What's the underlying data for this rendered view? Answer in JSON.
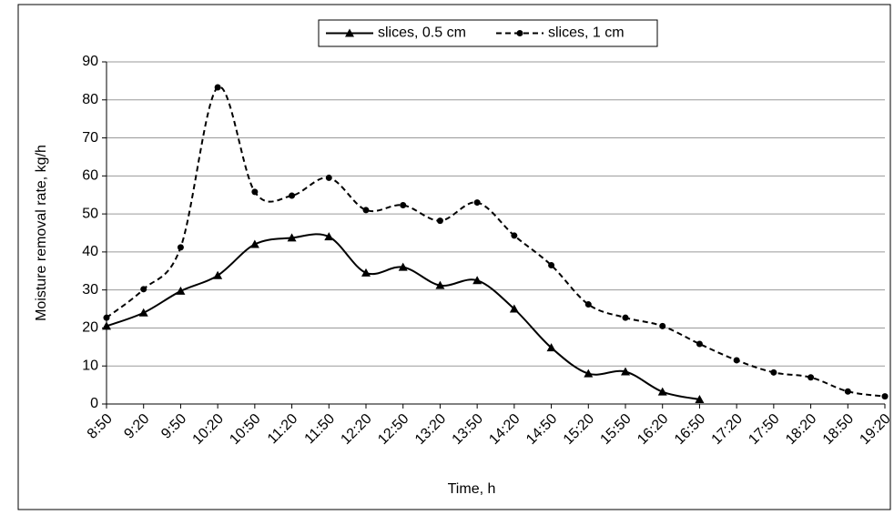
{
  "chart_data": {
    "type": "line",
    "x_label": "Time, h",
    "y_label": "Moisture removal rate, kg/h",
    "categories": [
      "8:50",
      "9:20",
      "9:50",
      "10:20",
      "10:50",
      "11:20",
      "11:50",
      "12:20",
      "12:50",
      "13:20",
      "13:50",
      "14:20",
      "14:50",
      "15:20",
      "15:50",
      "16:20",
      "16:50",
      "17:20",
      "17:50",
      "18:20",
      "18:50",
      "19:20"
    ],
    "series": [
      {
        "name": "slices, 0.5 cm",
        "color": "#000000",
        "dash": "solid",
        "marker": "triangle",
        "values": [
          20.5,
          24,
          29.7,
          33.8,
          42,
          43.7,
          44,
          34.5,
          36,
          31.2,
          32.5,
          25,
          14.8,
          8,
          8.5,
          3.2,
          1.2,
          null,
          null,
          null,
          null,
          null
        ]
      },
      {
        "name": "slices, 1 cm",
        "color": "#000000",
        "dash": "dashed",
        "marker": "circle",
        "values": [
          22.7,
          30.2,
          41.2,
          83.3,
          55.8,
          54.8,
          59.5,
          51,
          52.3,
          48.2,
          53,
          44.3,
          36.5,
          26.2,
          22.7,
          20.5,
          15.8,
          11.5,
          8.3,
          7,
          3.3,
          2
        ]
      }
    ],
    "ylim": [
      0,
      90
    ],
    "yticks": [
      0,
      10,
      20,
      30,
      40,
      50,
      60,
      70,
      80,
      90
    ],
    "grid": true,
    "legend": "top"
  }
}
